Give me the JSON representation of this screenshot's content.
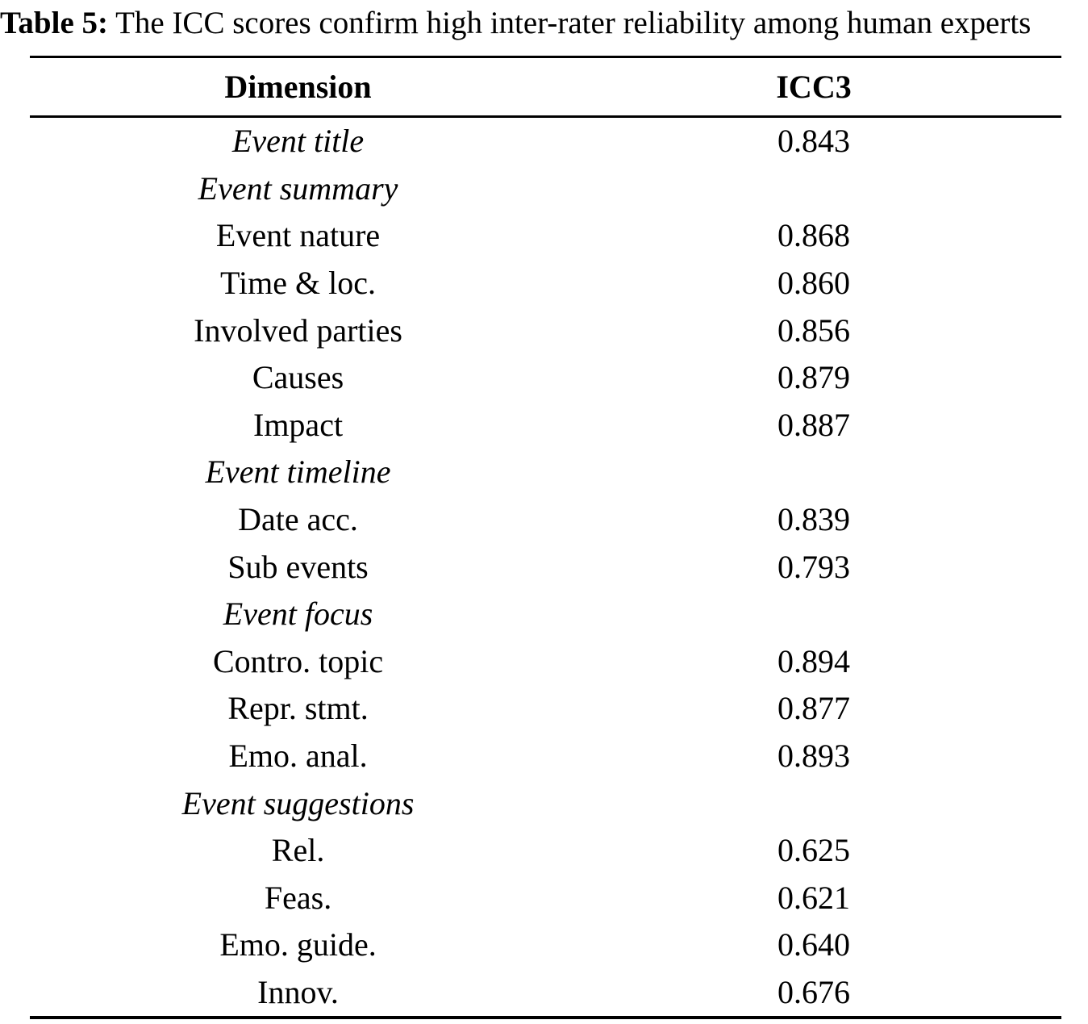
{
  "caption": {
    "label": "Table 5:",
    "text": "The ICC scores confirm high inter-rater reliability among human experts"
  },
  "table": {
    "columns": [
      "Dimension",
      "ICC3"
    ],
    "rows": [
      {
        "dimension": "Event title",
        "icc3": "0.843",
        "is_group": true
      },
      {
        "dimension": "Event summary",
        "icc3": "",
        "is_group": true
      },
      {
        "dimension": "Event nature",
        "icc3": "0.868",
        "is_group": false
      },
      {
        "dimension": "Time & loc.",
        "icc3": "0.860",
        "is_group": false
      },
      {
        "dimension": "Involved parties",
        "icc3": "0.856",
        "is_group": false
      },
      {
        "dimension": "Causes",
        "icc3": "0.879",
        "is_group": false
      },
      {
        "dimension": "Impact",
        "icc3": "0.887",
        "is_group": false
      },
      {
        "dimension": "Event timeline",
        "icc3": "",
        "is_group": true
      },
      {
        "dimension": "Date acc.",
        "icc3": "0.839",
        "is_group": false
      },
      {
        "dimension": "Sub events",
        "icc3": "0.793",
        "is_group": false
      },
      {
        "dimension": "Event focus",
        "icc3": "",
        "is_group": true
      },
      {
        "dimension": "Contro. topic",
        "icc3": "0.894",
        "is_group": false
      },
      {
        "dimension": "Repr. stmt.",
        "icc3": "0.877",
        "is_group": false
      },
      {
        "dimension": "Emo. anal.",
        "icc3": "0.893",
        "is_group": false
      },
      {
        "dimension": "Event suggestions",
        "icc3": "",
        "is_group": true
      },
      {
        "dimension": "Rel.",
        "icc3": "0.625",
        "is_group": false
      },
      {
        "dimension": "Feas.",
        "icc3": "0.621",
        "is_group": false
      },
      {
        "dimension": "Emo. guide.",
        "icc3": "0.640",
        "is_group": false
      },
      {
        "dimension": "Innov.",
        "icc3": "0.676",
        "is_group": false
      }
    ]
  }
}
